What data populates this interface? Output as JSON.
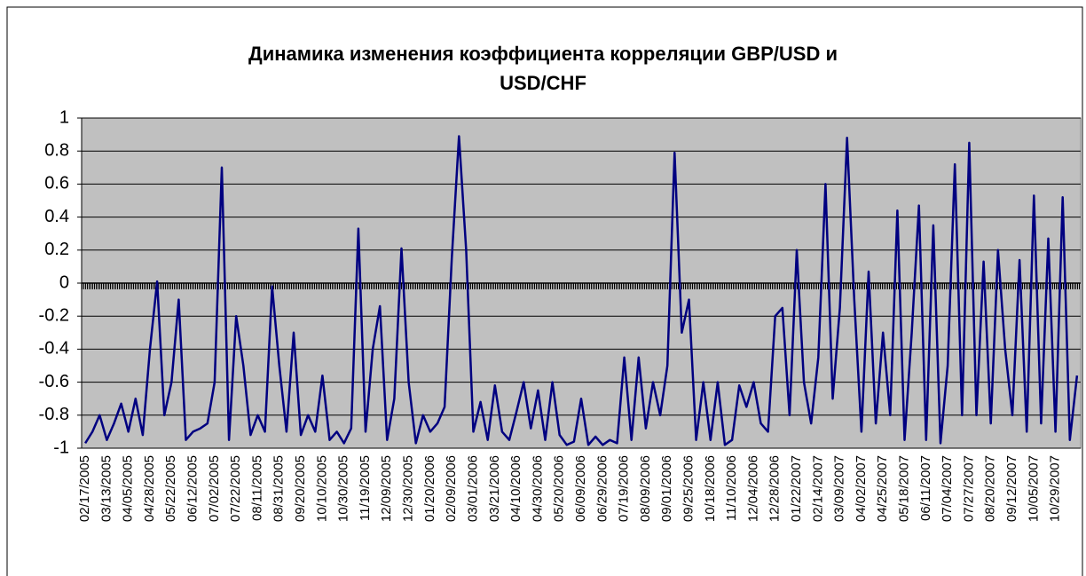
{
  "chart_data": {
    "type": "line",
    "title": "Динамика изменения коэффициента корреляции GBP/USD и USD/CHF",
    "categories": [
      "02/17/2005",
      null,
      null,
      "03/13/2005",
      null,
      null,
      "04/05/2005",
      null,
      null,
      "04/28/2005",
      null,
      null,
      "05/22/2005",
      null,
      null,
      "06/12/2005",
      null,
      null,
      "07/02/2005",
      null,
      null,
      "07/22/2005",
      null,
      null,
      "08/11/2005",
      null,
      null,
      "08/31/2005",
      null,
      null,
      "09/20/2005",
      null,
      null,
      "10/10/2005",
      null,
      null,
      "10/30/2005",
      null,
      null,
      "11/19/2005",
      null,
      null,
      "12/09/2005",
      null,
      null,
      "12/30/2005",
      null,
      null,
      "01/20/2006",
      null,
      null,
      "02/09/2006",
      null,
      null,
      "03/01/2006",
      null,
      null,
      "03/21/2006",
      null,
      null,
      "04/10/2006",
      null,
      null,
      "04/30/2006",
      null,
      null,
      "05/20/2006",
      null,
      null,
      "06/09/2006",
      null,
      null,
      "06/29/2006",
      null,
      null,
      "07/19/2006",
      null,
      null,
      "08/09/2006",
      null,
      null,
      "09/01/2006",
      null,
      null,
      "09/25/2006",
      null,
      null,
      "10/18/2006",
      null,
      null,
      "11/10/2006",
      null,
      null,
      "12/04/2006",
      null,
      null,
      "12/28/2006",
      null,
      null,
      "01/22/2007",
      null,
      null,
      "02/14/2007",
      null,
      null,
      "03/09/2007",
      null,
      null,
      "04/02/2007",
      null,
      null,
      "04/25/2007",
      null,
      null,
      "05/18/2007",
      null,
      null,
      "06/11/2007",
      null,
      null,
      "07/04/2007",
      null,
      null,
      "07/27/2007",
      null,
      null,
      "08/20/2007",
      null,
      null,
      "09/12/2007",
      null,
      null,
      "10/05/2007",
      null,
      null,
      "10/29/2007",
      null,
      null,
      null
    ],
    "values": [
      -0.97,
      -0.9,
      -0.8,
      -0.95,
      -0.85,
      -0.73,
      -0.9,
      -0.7,
      -0.92,
      -0.4,
      0.01,
      -0.8,
      -0.6,
      -0.1,
      -0.95,
      -0.9,
      -0.88,
      -0.85,
      -0.6,
      0.7,
      -0.95,
      -0.2,
      -0.5,
      -0.92,
      -0.8,
      -0.9,
      -0.02,
      -0.5,
      -0.9,
      -0.3,
      -0.92,
      -0.8,
      -0.9,
      -0.56,
      -0.95,
      -0.9,
      -0.97,
      -0.88,
      0.33,
      -0.9,
      -0.4,
      -0.14,
      -0.95,
      -0.7,
      0.21,
      -0.6,
      -0.97,
      -0.8,
      -0.9,
      -0.85,
      -0.75,
      0.15,
      0.89,
      0.2,
      -0.9,
      -0.72,
      -0.95,
      -0.62,
      -0.9,
      -0.95,
      -0.78,
      -0.6,
      -0.88,
      -0.65,
      -0.95,
      -0.6,
      -0.92,
      -0.98,
      -0.96,
      -0.7,
      -0.98,
      -0.93,
      -0.98,
      -0.95,
      -0.97,
      -0.45,
      -0.95,
      -0.45,
      -0.88,
      -0.6,
      -0.8,
      -0.5,
      0.79,
      -0.3,
      -0.1,
      -0.95,
      -0.6,
      -0.95,
      -0.6,
      -0.98,
      -0.95,
      -0.62,
      -0.75,
      -0.6,
      -0.85,
      -0.9,
      -0.2,
      -0.15,
      -0.8,
      0.2,
      -0.6,
      -0.85,
      -0.45,
      0.6,
      -0.7,
      -0.15,
      0.88,
      -0.1,
      -0.9,
      0.07,
      -0.85,
      -0.3,
      -0.8,
      0.44,
      -0.95,
      -0.3,
      0.47,
      -0.95,
      0.35,
      -0.97,
      -0.5,
      0.72,
      -0.8,
      0.85,
      -0.8,
      0.13,
      -0.85,
      0.2,
      -0.4,
      -0.8,
      0.14,
      -0.9,
      0.53,
      -0.85,
      0.27,
      -0.9,
      0.52,
      -0.95,
      -0.56
    ],
    "color": "#000080",
    "ylim": [
      -1,
      1
    ],
    "yticks": [
      -1,
      -0.8,
      -0.6,
      -0.4,
      -0.2,
      0,
      0.2,
      0.4,
      0.6,
      0.8,
      1
    ],
    "grid": true
  }
}
